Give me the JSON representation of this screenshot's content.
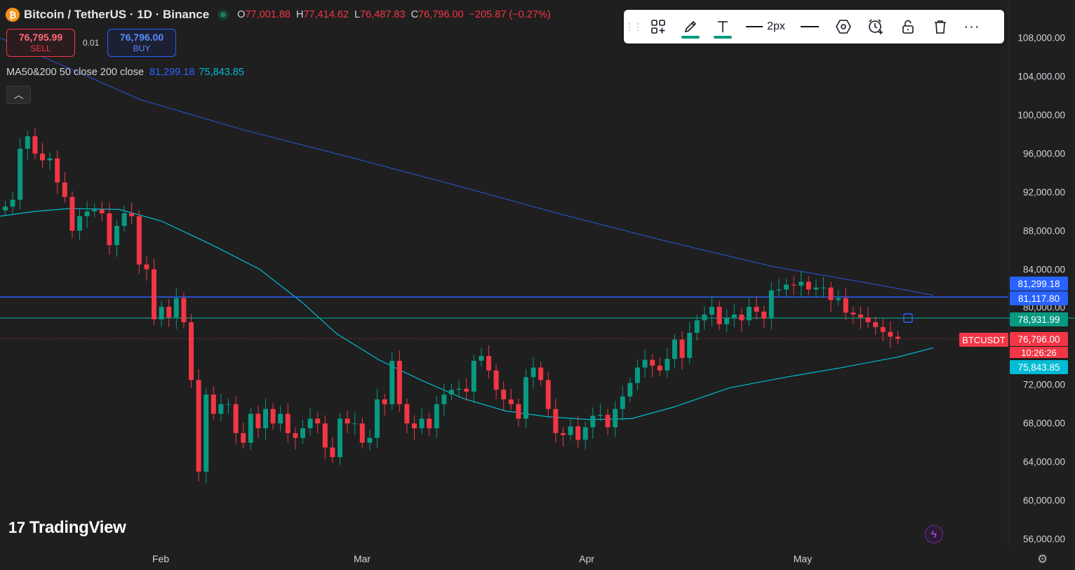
{
  "header": {
    "symbol_title": "Bitcoin / TetherUS · 1D · Binance",
    "coin_glyph": "₿",
    "ohlc": [
      {
        "k": "O",
        "v": "77,001.88"
      },
      {
        "k": "H",
        "v": "77,414.62"
      },
      {
        "k": "L",
        "v": "76,487.83"
      },
      {
        "k": "C",
        "v": "76,796.00"
      },
      {
        "k": "",
        "v": "−205.87 (−0.27%)"
      }
    ]
  },
  "trade": {
    "sell_price": "76,795.99",
    "sell_label": "SELL",
    "buy_price": "76,796.00",
    "buy_label": "BUY",
    "spread": "0.01"
  },
  "indicator": {
    "label": "MA50&200 50 close 200 close",
    "ma200_value": "81,299.18",
    "ma50_value": "75,843.85"
  },
  "toolbar": {
    "icons": [
      "drag-handle-icon",
      "templates-icon",
      "pencil-icon",
      "text-icon",
      "line-width-icon",
      "line-style-icon",
      "settings-hex-icon",
      "alert-icon",
      "lock-icon",
      "trash-icon",
      "more-icon"
    ],
    "width_label": "2px"
  },
  "price_axis": {
    "ticks": [
      "108,000.00",
      "104,000.00",
      "100,000.00",
      "96,000.00",
      "92,000.00",
      "88,000.00",
      "84,000.00",
      "80,000.00",
      "72,000.00",
      "68,000.00",
      "64,000.00",
      "60,000.00",
      "56,000.00"
    ],
    "tick_values": [
      108000,
      104000,
      100000,
      96000,
      92000,
      88000,
      84000,
      80000,
      72000,
      68000,
      64000,
      60000,
      56000
    ],
    "labels": [
      {
        "text": "81,299.18",
        "value": 81299.18,
        "color": "#2962ff"
      },
      {
        "text": "81,117.80",
        "value": 81117.8,
        "color": "#2962ff"
      },
      {
        "text": "78,931.99",
        "value": 78931.99,
        "color": "#089981"
      },
      {
        "text": "76,796.00",
        "value": 76796.0,
        "color": "#f23645"
      },
      {
        "text": "75,843.85",
        "value": 75843.85,
        "color": "#00bcd4"
      }
    ],
    "symbol_tag": "BTCUSDT",
    "countdown": "10:26:26"
  },
  "time_axis": [
    "Feb",
    "Mar",
    "Apr",
    "May"
  ],
  "logo_text": "TradingView",
  "logo_mark": "17",
  "colors": {
    "up": "#089981",
    "down": "#f23645",
    "ma200": "#2962ff",
    "ma50": "#00bcd4",
    "hline_blue": "#2962ff",
    "hline_green": "#089981"
  },
  "chart_data": {
    "type": "candlestick",
    "title": "Bitcoin / TetherUS · 1D · Binance",
    "x_labels": [
      "Feb",
      "Mar",
      "Apr",
      "May"
    ],
    "ylim": [
      56000,
      108000
    ],
    "horizontal_lines": [
      81117.8,
      78931.99
    ],
    "last_price": 76796.0,
    "series": [
      {
        "name": "Close",
        "values": [
          90500,
          91200,
          96500,
          97800,
          96000,
          95300,
          95500,
          93000,
          91500,
          88000,
          89500,
          90000,
          90200,
          89800,
          86500,
          88500,
          89800,
          89500,
          84500,
          84000,
          78800,
          80100,
          79000,
          81000,
          78500,
          72500,
          63000,
          71000,
          69000,
          70000,
          70000,
          67000,
          66000,
          69000,
          67500,
          69500,
          68000,
          69000,
          67000,
          66500,
          67500,
          68500,
          68000,
          65500,
          64500,
          68500,
          68000,
          68000,
          66000,
          66500,
          70500,
          70000,
          74500,
          70000,
          68000,
          67500,
          68500,
          67500,
          70000,
          71000,
          71500,
          71600,
          71300,
          74500,
          75000,
          73500,
          71500,
          70500,
          70000,
          68500,
          72800,
          73800,
          72500,
          69500,
          67000,
          66800,
          67700,
          66300,
          67600,
          68800,
          68900,
          67600,
          69500,
          70800,
          72200,
          73800,
          74600,
          74000,
          73500,
          74700,
          76700,
          74800,
          77400,
          78700,
          79300,
          80100,
          78300,
          79000,
          79300,
          78700,
          80100,
          79600,
          78900,
          81800,
          81900,
          82400,
          82300,
          82700,
          81900,
          82100,
          82100,
          80800,
          81000,
          79500,
          79300,
          79000,
          78500,
          78000,
          77500,
          77000,
          76796
        ]
      },
      {
        "name": "MA50",
        "values": [
          75843.85
        ]
      },
      {
        "name": "MA200",
        "values": [
          81299.18
        ]
      }
    ]
  }
}
